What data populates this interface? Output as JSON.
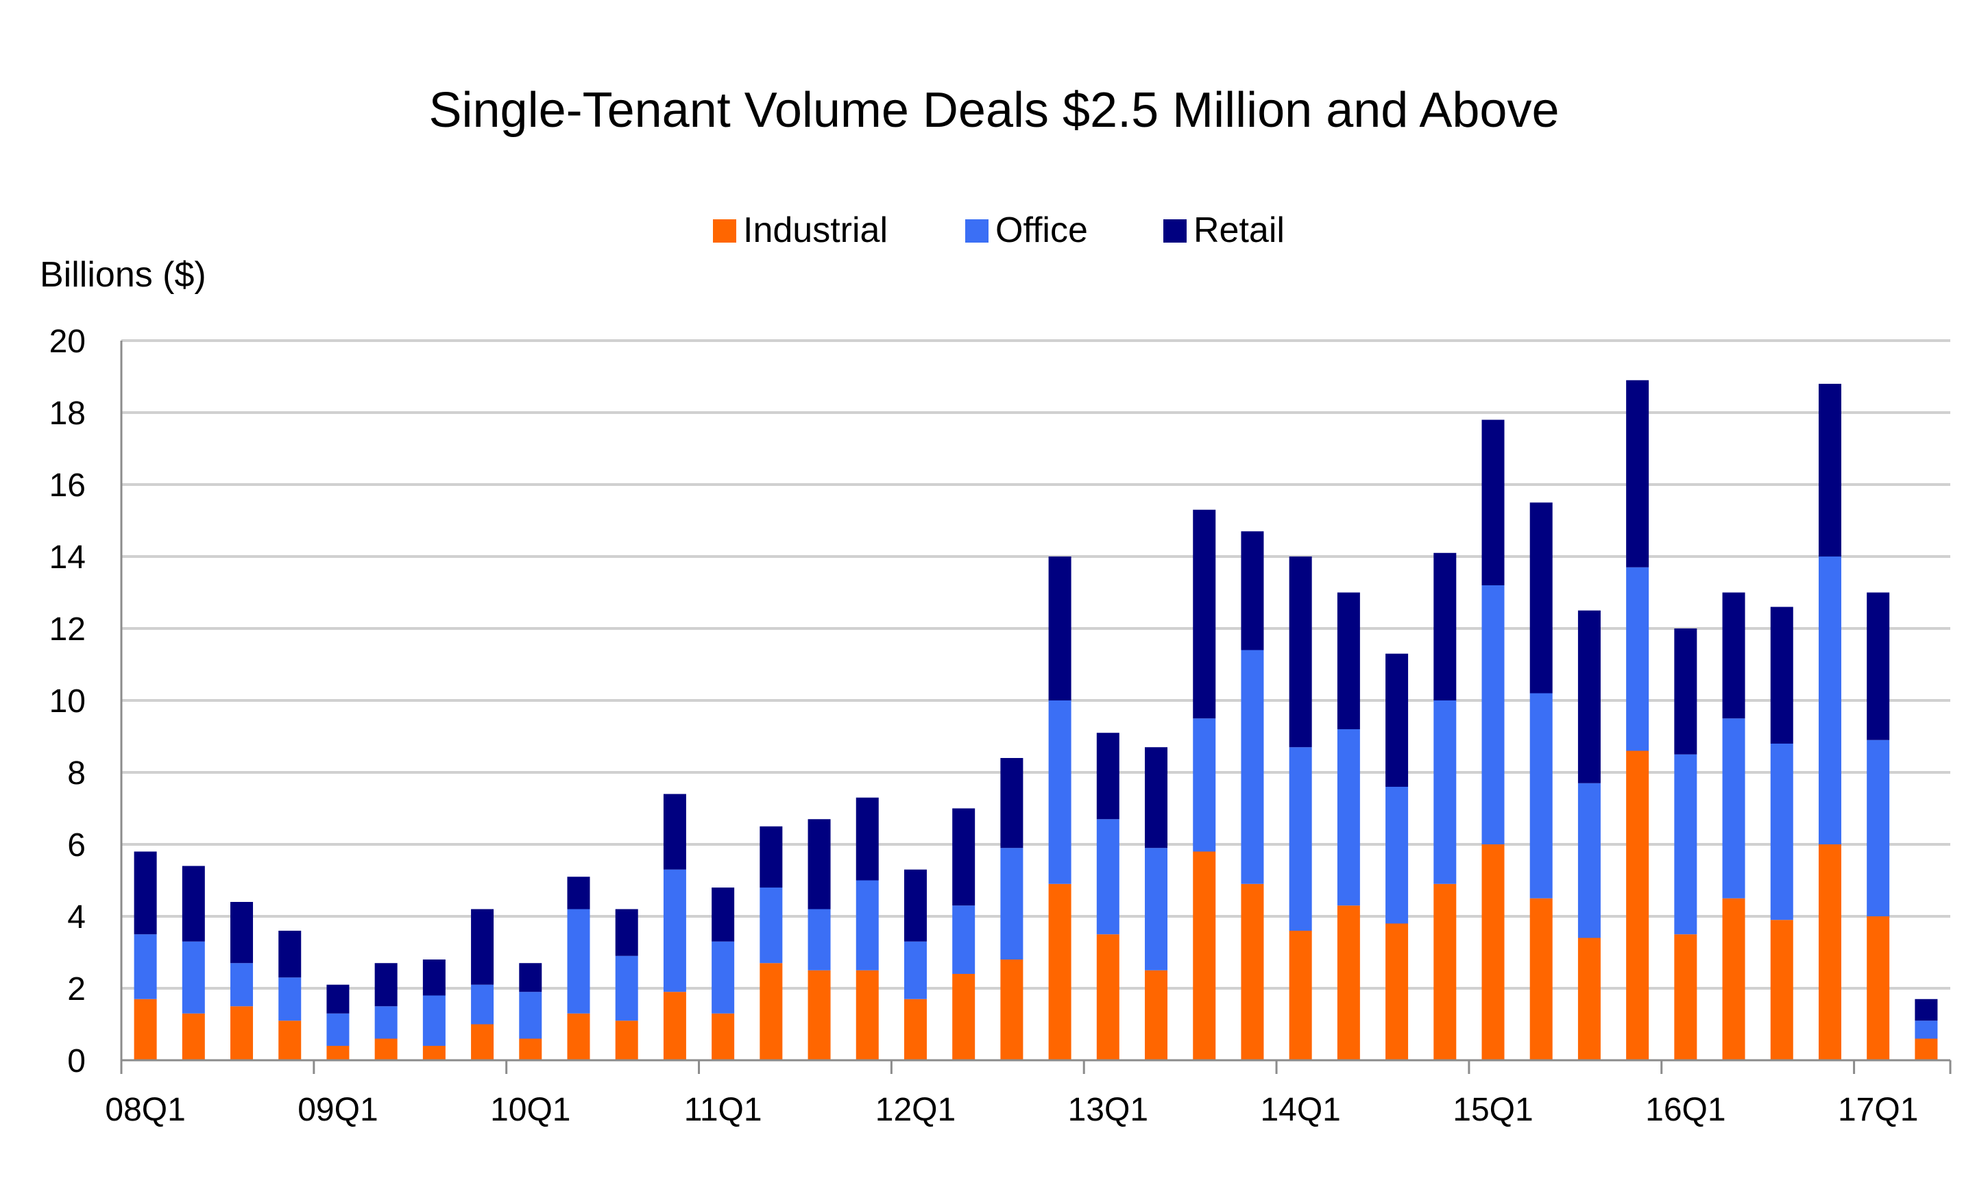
{
  "chart_data": {
    "type": "bar",
    "stacked": true,
    "title": "Single-Tenant Volume Deals $2.5 Million and Above",
    "ylabel": "Billions ($)",
    "xlabel": "",
    "ylim": [
      0,
      20
    ],
    "yticks": [
      0,
      2,
      4,
      6,
      8,
      10,
      12,
      14,
      16,
      18,
      20
    ],
    "grid": true,
    "legend_position": "top-center",
    "categories": [
      "08Q1",
      "08Q2",
      "08Q3",
      "08Q4",
      "09Q1",
      "09Q2",
      "09Q3",
      "09Q4",
      "10Q1",
      "10Q2",
      "10Q3",
      "10Q4",
      "11Q1",
      "11Q2",
      "11Q3",
      "11Q4",
      "12Q1",
      "12Q2",
      "12Q3",
      "12Q4",
      "13Q1",
      "13Q2",
      "13Q3",
      "13Q4",
      "14Q1",
      "14Q2",
      "14Q3",
      "14Q4",
      "15Q1",
      "15Q2",
      "15Q3",
      "15Q4",
      "16Q1",
      "16Q2",
      "16Q3",
      "16Q4",
      "17Q1",
      "17Q2"
    ],
    "xtick_labels": [
      "08Q1",
      "09Q1",
      "10Q1",
      "11Q1",
      "12Q1",
      "13Q1",
      "14Q1",
      "15Q1",
      "16Q1",
      "17Q1"
    ],
    "series": [
      {
        "name": "Industrial",
        "color": "#ff6600",
        "values": [
          1.7,
          1.3,
          1.5,
          1.1,
          0.4,
          0.6,
          0.4,
          1.0,
          0.6,
          1.3,
          1.1,
          1.9,
          1.3,
          2.7,
          2.5,
          2.5,
          1.7,
          2.4,
          2.8,
          4.9,
          3.5,
          2.5,
          5.8,
          4.9,
          3.6,
          4.3,
          3.8,
          4.9,
          6.0,
          4.5,
          3.4,
          8.6,
          3.5,
          4.5,
          3.9,
          6.0,
          4.0,
          0.6
        ]
      },
      {
        "name": "Office",
        "color": "#3b6ff5",
        "values": [
          1.8,
          2.0,
          1.2,
          1.2,
          0.9,
          0.9,
          1.4,
          1.1,
          1.3,
          2.9,
          1.8,
          3.4,
          2.0,
          2.1,
          1.7,
          2.5,
          1.6,
          1.9,
          3.1,
          5.1,
          3.2,
          3.4,
          3.7,
          6.5,
          5.1,
          4.9,
          3.8,
          5.1,
          7.2,
          5.7,
          4.3,
          5.1,
          5.0,
          5.0,
          4.9,
          8.0,
          4.9,
          0.5
        ]
      },
      {
        "name": "Retail",
        "color": "#000080",
        "values": [
          2.3,
          2.1,
          1.7,
          1.3,
          0.8,
          1.2,
          1.0,
          2.1,
          0.8,
          0.9,
          1.3,
          2.1,
          1.5,
          1.7,
          2.5,
          2.3,
          2.0,
          2.7,
          2.5,
          4.0,
          2.4,
          2.8,
          5.8,
          3.3,
          5.3,
          3.8,
          3.7,
          4.1,
          4.6,
          5.3,
          4.8,
          5.2,
          3.5,
          3.5,
          3.8,
          4.8,
          4.1,
          0.6
        ]
      }
    ]
  }
}
